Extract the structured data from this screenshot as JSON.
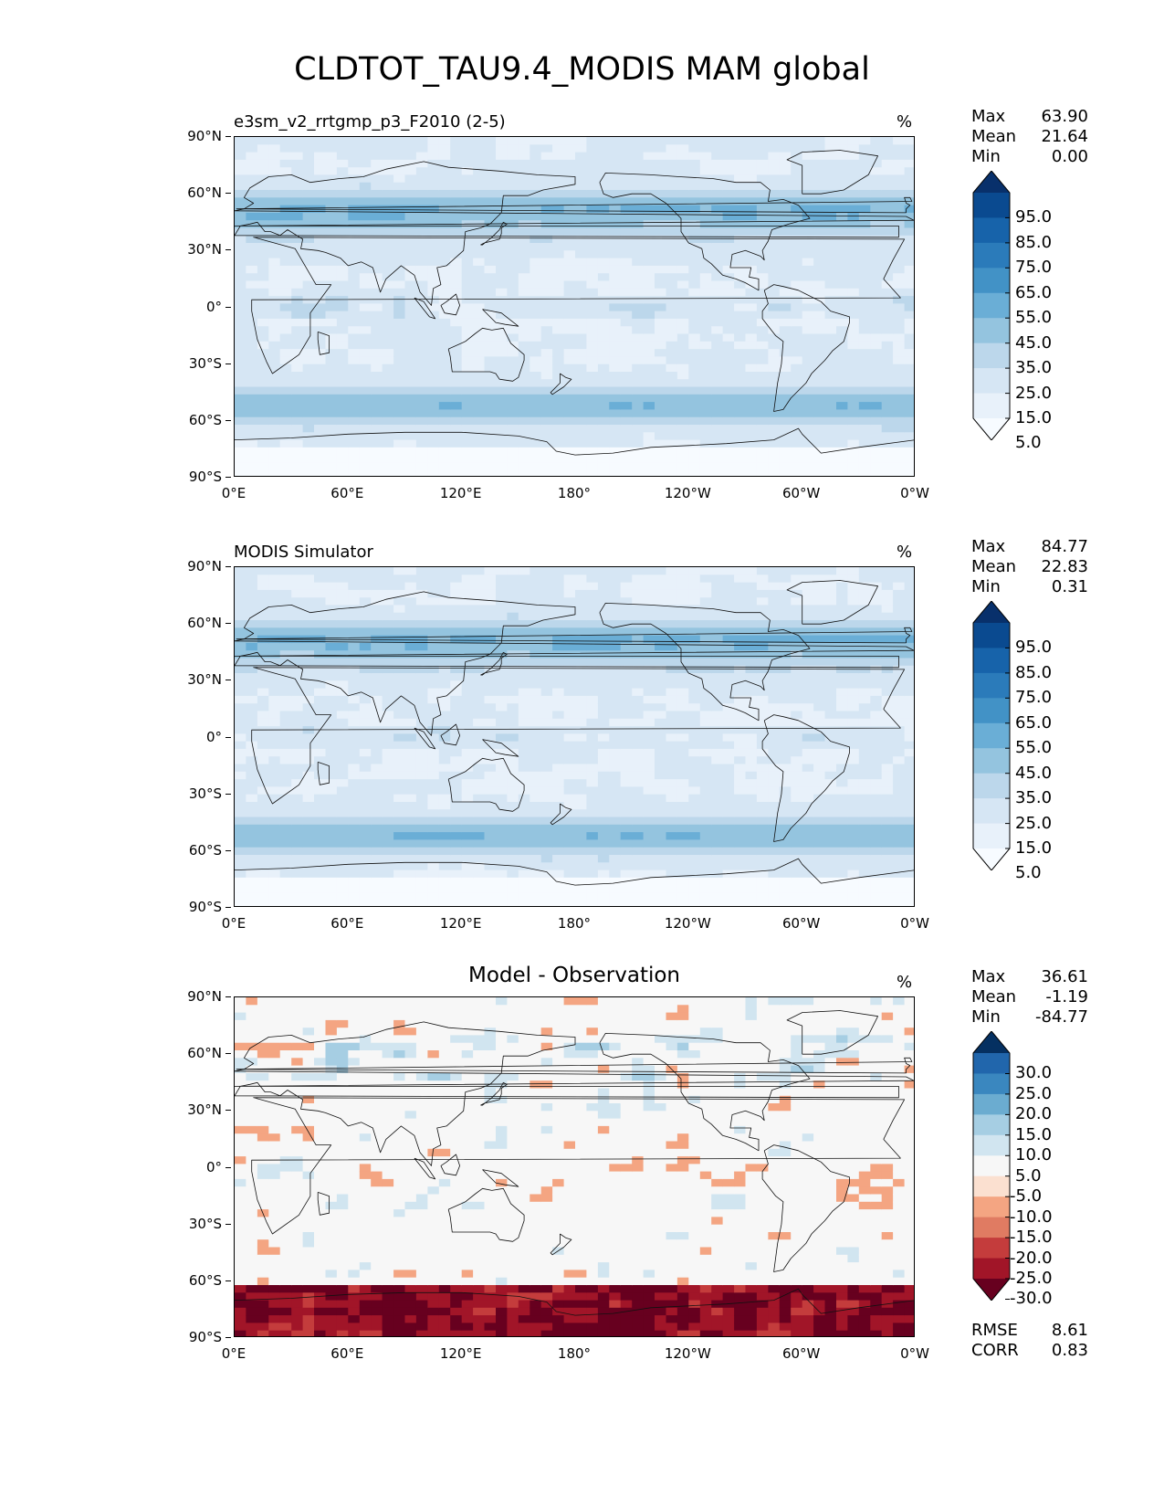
{
  "title": "CLDTOT_TAU9.4_MODIS MAM global",
  "lat_ticks": [
    "90°N",
    "60°N",
    "30°N",
    "0°",
    "30°S",
    "60°S",
    "90°S"
  ],
  "lon_ticks": [
    "0°E",
    "60°E",
    "120°E",
    "180°",
    "120°W",
    "60°W",
    "0°W"
  ],
  "panels": [
    {
      "title": "e3sm_v2_rrtgmp_p3_F2010 (2-5)",
      "title_style": "left",
      "unit": "%",
      "stats": {
        "max_label": "Max",
        "max": "63.90",
        "mean_label": "Mean",
        "mean": "21.64",
        "min_label": "Min",
        "min": "0.00"
      },
      "colorbar": {
        "labels": [
          "95.0",
          "85.0",
          "75.0",
          "65.0",
          "55.0",
          "45.0",
          "35.0",
          "25.0",
          "15.0",
          "5.0"
        ],
        "colors": [
          "#08306b",
          "#0a4a90",
          "#1763aa",
          "#2b7bba",
          "#4292c6",
          "#6aaed6",
          "#94c4df",
          "#bcd7eb",
          "#d6e6f4",
          "#e8f1fa",
          "#f7fbff"
        ]
      },
      "field_palette": "blues"
    },
    {
      "title": "MODIS Simulator",
      "title_style": "left",
      "unit": "%",
      "stats": {
        "max_label": "Max",
        "max": "84.77",
        "mean_label": "Mean",
        "mean": "22.83",
        "min_label": "Min",
        "min": "0.31"
      },
      "colorbar": {
        "labels": [
          "95.0",
          "85.0",
          "75.0",
          "65.0",
          "55.0",
          "45.0",
          "35.0",
          "25.0",
          "15.0",
          "5.0"
        ],
        "colors": [
          "#08306b",
          "#0a4a90",
          "#1763aa",
          "#2b7bba",
          "#4292c6",
          "#6aaed6",
          "#94c4df",
          "#bcd7eb",
          "#d6e6f4",
          "#e8f1fa",
          "#f7fbff"
        ]
      },
      "field_palette": "blues"
    },
    {
      "title": "Model - Observation",
      "title_style": "center",
      "unit": "%",
      "stats": {
        "max_label": "Max",
        "max": "36.61",
        "mean_label": "Mean",
        "mean": "-1.19",
        "min_label": "Min",
        "min": "-84.77"
      },
      "colorbar": {
        "labels": [
          "30.0",
          "25.0",
          "20.0",
          "15.0",
          "10.0",
          "5.0",
          "-5.0",
          "-10.0",
          "-15.0",
          "-20.0",
          "-25.0",
          "-30.0"
        ],
        "colors": [
          "#053061",
          "#2166ac",
          "#3a87bf",
          "#6bacd0",
          "#a6cee3",
          "#d1e5f0",
          "#f7f7f7",
          "#fbe0d0",
          "#f4a582",
          "#e07b62",
          "#c43c3c",
          "#a11528",
          "#67001f"
        ]
      },
      "field_palette": "diff",
      "rmse": {
        "rmse_label": "RMSE",
        "rmse": "8.61",
        "corr_label": "CORR",
        "corr": "0.83"
      }
    }
  ]
}
